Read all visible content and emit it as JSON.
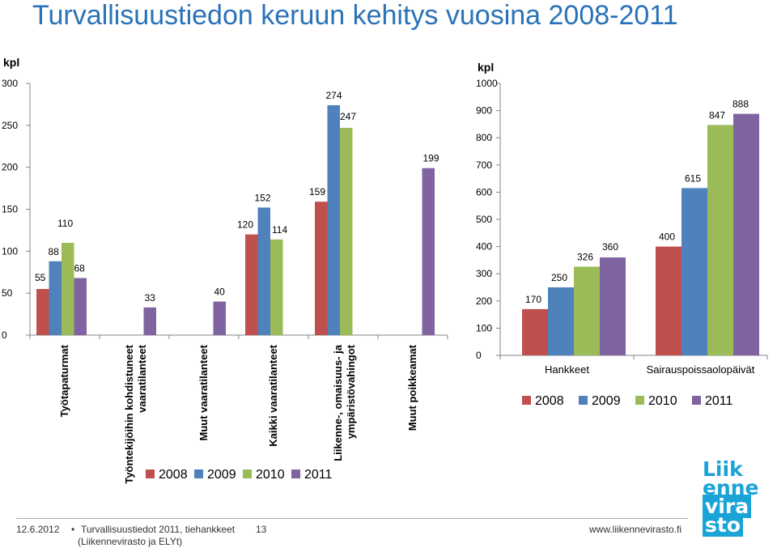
{
  "page": {
    "title": "Turvallisuustiedon keruun kehitys vuosina 2008-2011"
  },
  "colors": {
    "title": "#2a72b8",
    "2008": "#c0504d",
    "2009": "#4f81bd",
    "2010": "#9bbb59",
    "2011": "#8064a2"
  },
  "chart_data": [
    {
      "type": "bar",
      "ylabel": "kpl",
      "ylim": [
        0,
        300
      ],
      "yticks": [
        0,
        50,
        100,
        150,
        200,
        250,
        300
      ],
      "grid": false,
      "legend": "bottom",
      "categories": [
        "Työtapaturmat",
        "Työntekijöihin kohdistuneet vaaratilanteet",
        "Muut vaaratilanteet",
        "Kaikki vaaratilanteet",
        "Liikenne-, omaisuus- ja ympäristövahingot",
        "Muut poikkeamat"
      ],
      "category_lines": [
        [
          "Työtapaturmat"
        ],
        [
          "Työntekijöihin kohdistuneet",
          "vaaratilanteet"
        ],
        [
          "Muut vaaratilanteet"
        ],
        [
          "Kaikki vaaratilanteet"
        ],
        [
          "Liikenne-, omaisuus- ja",
          "ympäristövahingot"
        ],
        [
          "Muut poikkeamat"
        ]
      ],
      "series": [
        {
          "name": "2008",
          "values": [
            55,
            null,
            null,
            120,
            159,
            null
          ]
        },
        {
          "name": "2009",
          "values": [
            88,
            null,
            null,
            152,
            274,
            null
          ]
        },
        {
          "name": "2010",
          "values": [
            110,
            null,
            null,
            114,
            247,
            null
          ]
        },
        {
          "name": "2011",
          "values": [
            68,
            33,
            40,
            null,
            null,
            199
          ]
        }
      ]
    },
    {
      "type": "bar",
      "ylabel": "kpl",
      "ylim": [
        0,
        1000
      ],
      "yticks": [
        0,
        100,
        200,
        300,
        400,
        500,
        600,
        700,
        800,
        900,
        1000
      ],
      "grid": false,
      "legend": "bottom",
      "categories": [
        "Hankkeet",
        "Sairauspoissaolopäivät"
      ],
      "series": [
        {
          "name": "2008",
          "values": [
            170,
            400
          ]
        },
        {
          "name": "2009",
          "values": [
            250,
            615
          ]
        },
        {
          "name": "2010",
          "values": [
            326,
            847
          ]
        },
        {
          "name": "2011",
          "values": [
            360,
            888
          ]
        }
      ]
    }
  ],
  "footer": {
    "date": "12.6.2012",
    "bullet": "•",
    "source_line1": "Turvallisuustiedot 2011, tiehankkeet",
    "source_line2": "(Liikennevirasto ja ELYt)",
    "page_number": "13",
    "url": "www.liikennevirasto.fi"
  },
  "logo": {
    "lines": [
      "Liik",
      "enne",
      "vira",
      "sto"
    ]
  }
}
